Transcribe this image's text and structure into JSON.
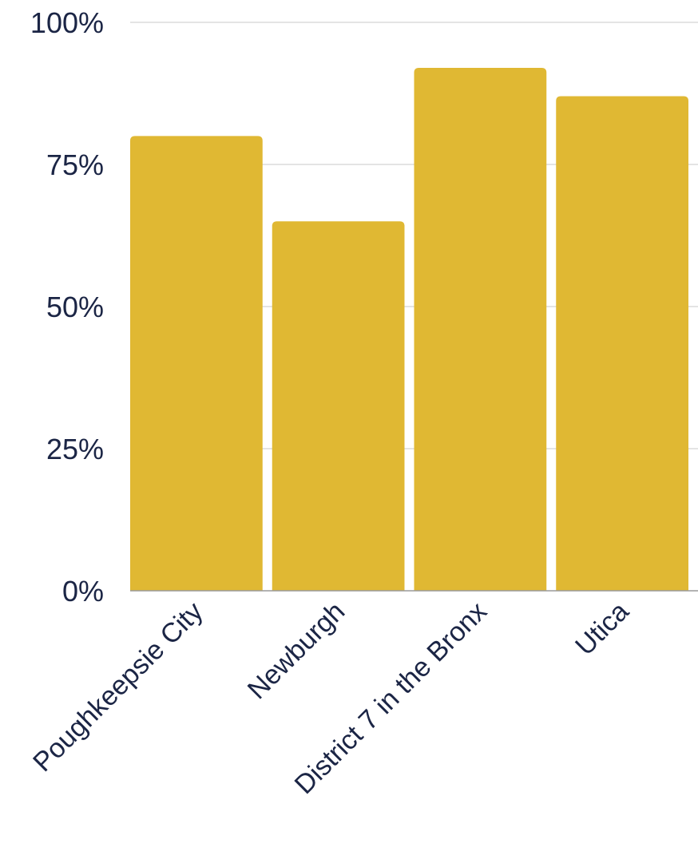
{
  "chart_data": {
    "type": "bar",
    "title": "",
    "xlabel": "",
    "ylabel": "",
    "categories": [
      "Poughkeepsie City",
      "Newburgh",
      "District 7 in the Bronx",
      "Utica"
    ],
    "values": [
      80,
      65,
      92,
      87
    ],
    "ylim": [
      0,
      100
    ],
    "yticks": [
      0,
      25,
      50,
      75,
      100
    ],
    "ytick_labels": [
      "0%",
      "25%",
      "50%",
      "75%",
      "100%"
    ],
    "grid": true,
    "legend": "none",
    "colors": {
      "bar": "#E0B833",
      "text": "#1B2545",
      "grid": "#C8C8C8",
      "axis": "#9A9A9A"
    }
  }
}
